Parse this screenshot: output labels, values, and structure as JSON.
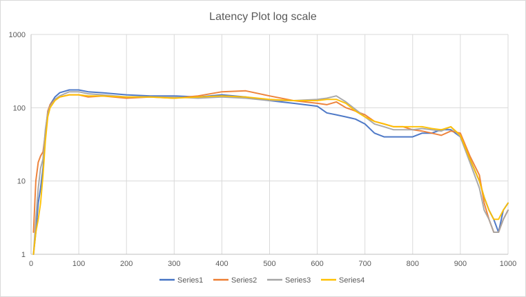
{
  "chart_data": {
    "type": "line",
    "title": "Latency Plot log scale",
    "xlabel": "",
    "ylabel": "",
    "xlim": [
      0,
      1000
    ],
    "ylim": [
      1,
      1000
    ],
    "y_scale": "log",
    "x_ticks": [
      "0",
      "100",
      "200",
      "300",
      "400",
      "500",
      "600",
      "700",
      "800",
      "900",
      "1000"
    ],
    "y_ticks": [
      "1",
      "10",
      "100",
      "1000"
    ],
    "x_tick_values": [
      0,
      100,
      200,
      300,
      400,
      500,
      600,
      700,
      800,
      900,
      1000
    ],
    "y_tick_values": [
      1,
      10,
      100,
      1000
    ],
    "grid": true,
    "legend_position": "bottom",
    "series": [
      {
        "name": "Series1",
        "color": "#4472C4",
        "x": [
          5,
          10,
          15,
          20,
          25,
          30,
          35,
          40,
          50,
          60,
          80,
          100,
          120,
          150,
          200,
          250,
          300,
          350,
          400,
          450,
          500,
          550,
          600,
          620,
          640,
          660,
          680,
          700,
          720,
          740,
          760,
          780,
          800,
          820,
          840,
          860,
          880,
          900,
          920,
          940,
          950,
          960,
          970,
          980,
          990,
          1000
        ],
        "y": [
          1,
          2,
          5,
          8,
          15,
          40,
          80,
          110,
          140,
          160,
          175,
          175,
          165,
          160,
          150,
          145,
          145,
          140,
          150,
          140,
          125,
          115,
          105,
          85,
          80,
          75,
          70,
          60,
          45,
          40,
          40,
          40,
          40,
          45,
          45,
          50,
          50,
          40,
          20,
          10,
          6,
          4,
          3,
          2,
          4,
          5
        ]
      },
      {
        "name": "Series2",
        "color": "#ED7D31",
        "x": [
          5,
          10,
          15,
          20,
          25,
          30,
          35,
          40,
          50,
          60,
          80,
          100,
          120,
          150,
          200,
          250,
          300,
          350,
          400,
          450,
          500,
          550,
          600,
          620,
          640,
          660,
          680,
          700,
          720,
          740,
          760,
          780,
          800,
          820,
          840,
          860,
          880,
          900,
          920,
          940,
          950,
          960,
          970,
          980,
          990,
          1000
        ],
        "y": [
          2,
          10,
          18,
          22,
          25,
          45,
          90,
          110,
          130,
          140,
          150,
          150,
          140,
          145,
          135,
          140,
          135,
          145,
          165,
          170,
          145,
          125,
          115,
          110,
          120,
          100,
          90,
          80,
          65,
          60,
          55,
          55,
          50,
          48,
          45,
          42,
          48,
          45,
          22,
          12,
          5,
          3,
          2,
          2,
          3,
          4
        ]
      },
      {
        "name": "Series3",
        "color": "#A5A5A5",
        "x": [
          5,
          10,
          15,
          20,
          25,
          30,
          35,
          40,
          50,
          60,
          80,
          100,
          120,
          150,
          200,
          250,
          300,
          350,
          400,
          450,
          500,
          550,
          600,
          620,
          640,
          660,
          680,
          700,
          720,
          740,
          760,
          780,
          800,
          820,
          840,
          860,
          880,
          900,
          920,
          940,
          950,
          960,
          970,
          980,
          990,
          1000
        ],
        "y": [
          1,
          3,
          8,
          15,
          20,
          50,
          85,
          105,
          130,
          145,
          165,
          165,
          155,
          150,
          140,
          140,
          140,
          135,
          140,
          135,
          125,
          125,
          130,
          135,
          145,
          120,
          95,
          75,
          60,
          55,
          50,
          50,
          50,
          52,
          50,
          48,
          55,
          40,
          18,
          8,
          4,
          3,
          2,
          2,
          3,
          4
        ]
      },
      {
        "name": "Series4",
        "color": "#FFC000",
        "x": [
          5,
          10,
          15,
          20,
          25,
          30,
          35,
          40,
          50,
          60,
          80,
          100,
          120,
          150,
          200,
          250,
          300,
          350,
          400,
          450,
          500,
          550,
          600,
          620,
          640,
          660,
          680,
          700,
          720,
          740,
          760,
          780,
          800,
          820,
          840,
          860,
          880,
          900,
          920,
          940,
          950,
          960,
          970,
          980,
          990,
          1000
        ],
        "y": [
          1,
          2,
          3,
          5,
          12,
          35,
          75,
          100,
          125,
          140,
          150,
          150,
          145,
          145,
          140,
          140,
          135,
          140,
          145,
          140,
          130,
          125,
          125,
          130,
          130,
          115,
          90,
          75,
          65,
          60,
          55,
          55,
          55,
          55,
          52,
          50,
          55,
          42,
          20,
          10,
          6,
          4,
          3,
          3,
          4,
          5
        ]
      }
    ]
  }
}
